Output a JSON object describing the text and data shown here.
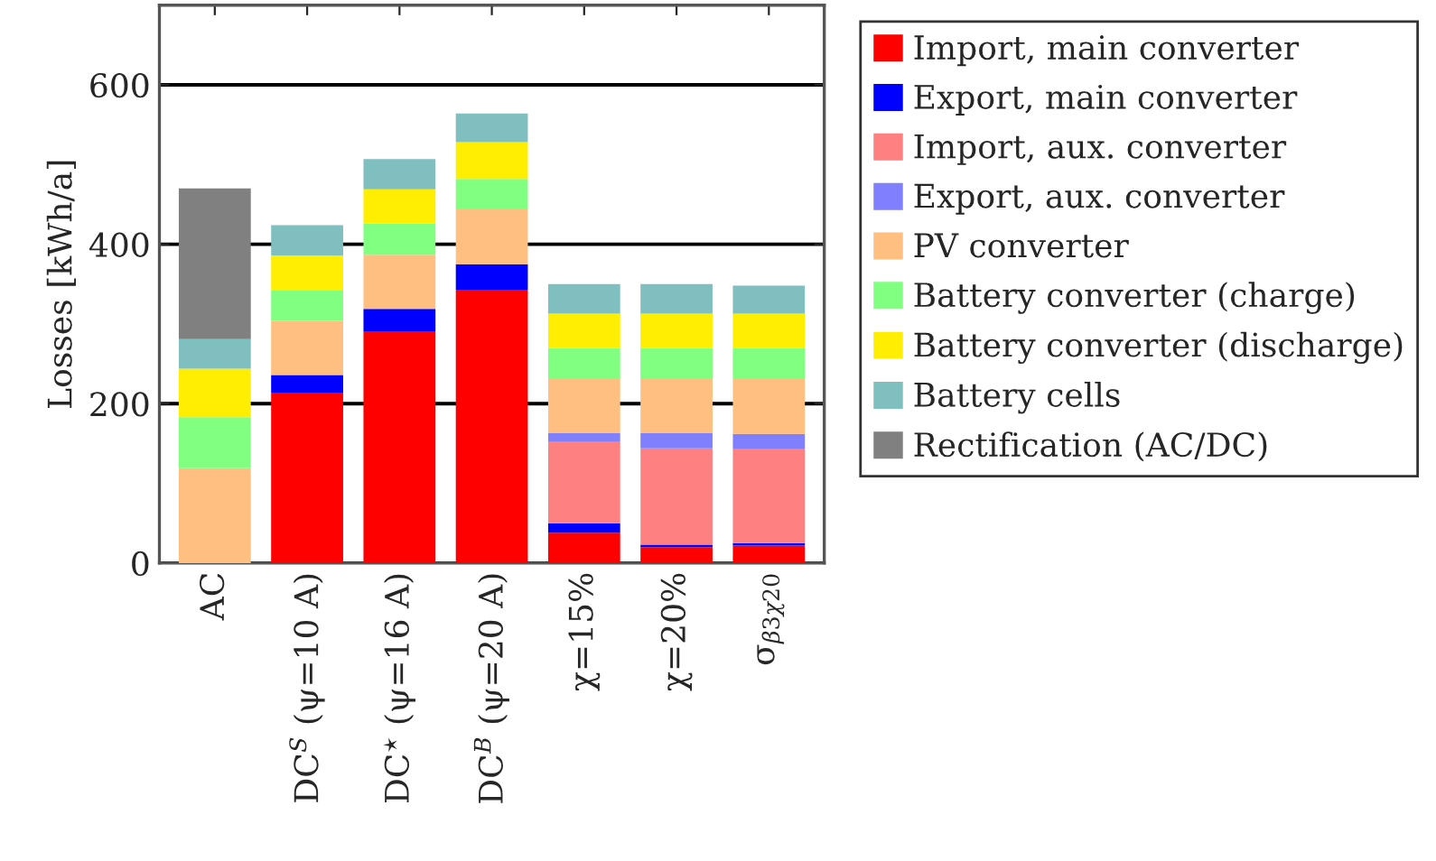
{
  "chart_data": {
    "type": "bar",
    "stacked": true,
    "ylabel": "Losses [kWh/a]",
    "categories": [
      "AC",
      "DC$^{S}$ (ψ=10 A)",
      "DC$^{⋆}$ (ψ=16 A)",
      "DC$^{B}$ (ψ=20 A)",
      "χ=15%",
      "χ=20%",
      "σ$_{β3χ20}$"
    ],
    "series": [
      {
        "name": "Import, main converter",
        "color": "#ff0000",
        "values": [
          null,
          214,
          291,
          343,
          38,
          20,
          22
        ]
      },
      {
        "name": "Export, main converter",
        "color": "#0000ff",
        "values": [
          null,
          22,
          28,
          32,
          12,
          3,
          3
        ]
      },
      {
        "name": "Import, aux. converter",
        "color": "#ff8080",
        "values": [
          null,
          null,
          null,
          null,
          102,
          121,
          118
        ]
      },
      {
        "name": "Export, aux. converter",
        "color": "#8080ff",
        "values": [
          null,
          null,
          null,
          null,
          11,
          19,
          19
        ]
      },
      {
        "name": "PV converter",
        "color": "#ffbf80",
        "values": [
          119,
          68,
          68,
          70,
          69,
          69,
          70
        ]
      },
      {
        "name": "Battery converter (charge)",
        "color": "#80ff80",
        "values": [
          64,
          38,
          39,
          37,
          38,
          38,
          38
        ]
      },
      {
        "name": "Battery converter (discharge)",
        "color": "#ffee00",
        "values": [
          61,
          44,
          43,
          46,
          43,
          43,
          43
        ]
      },
      {
        "name": "Battery cells",
        "color": "#80bfbf",
        "values": [
          37,
          38,
          38,
          36,
          37,
          37,
          35
        ]
      },
      {
        "name": "Rectification (AC/DC)",
        "color": "#808080",
        "values": [
          189,
          null,
          null,
          null,
          null,
          null,
          null
        ]
      }
    ],
    "ylim": [
      0,
      700
    ],
    "yticks": [
      0,
      200,
      400,
      600
    ],
    "grid": "y",
    "legend": "right"
  }
}
